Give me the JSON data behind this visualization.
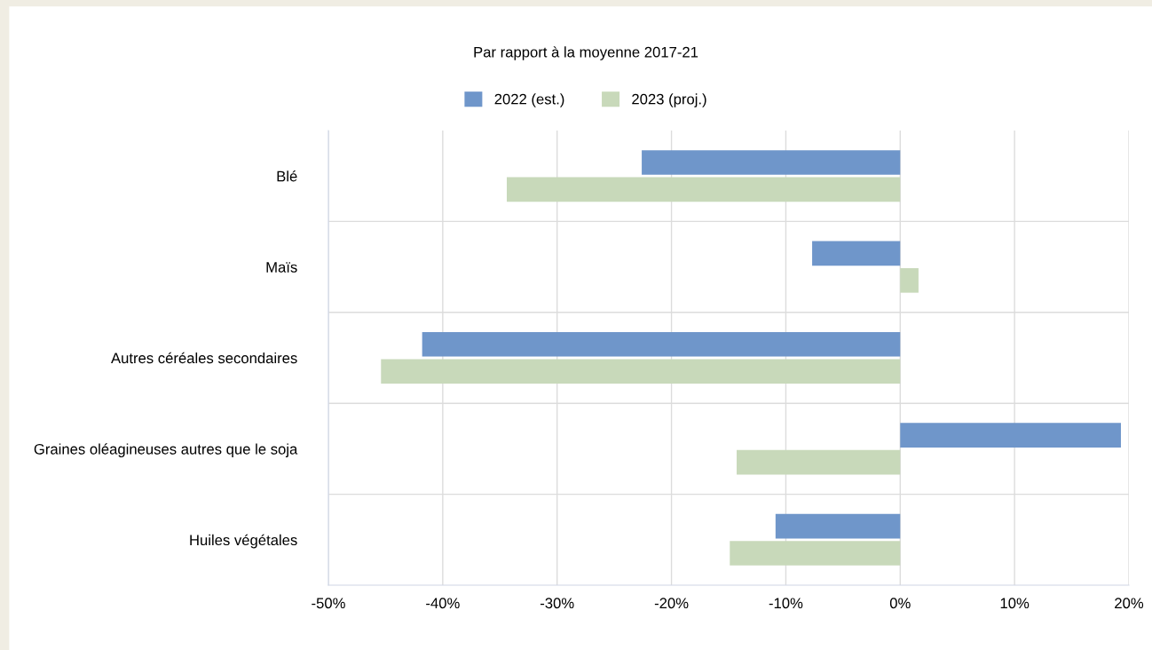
{
  "chart_data": {
    "type": "bar",
    "orientation": "horizontal",
    "title": "Par rapport à la moyenne 2017-21",
    "categories": [
      "Blé",
      "Maïs",
      "Autres céréales secondaires",
      "Graines oléagineuses autres que le soja",
      "Huiles végétales"
    ],
    "series": [
      {
        "name": "2022 (est.)",
        "color": "#6f96ca",
        "values": [
          -22.6,
          -7.7,
          -41.8,
          19.3,
          -10.9
        ]
      },
      {
        "name": "2023 (proj.)",
        "color": "#c8d9ba",
        "values": [
          -34.4,
          1.6,
          -45.4,
          -14.3,
          -14.9
        ]
      }
    ],
    "xlim": [
      -50,
      20
    ],
    "xticks": [
      {
        "value": -50,
        "label": "-50%"
      },
      {
        "value": -40,
        "label": "-40%"
      },
      {
        "value": -30,
        "label": "-30%"
      },
      {
        "value": -20,
        "label": "-20%"
      },
      {
        "value": -10,
        "label": "-10%"
      },
      {
        "value": 0,
        "label": "0%"
      },
      {
        "value": 10,
        "label": "10%"
      },
      {
        "value": 20,
        "label": "20%"
      }
    ],
    "grid": true,
    "legend": "top"
  }
}
